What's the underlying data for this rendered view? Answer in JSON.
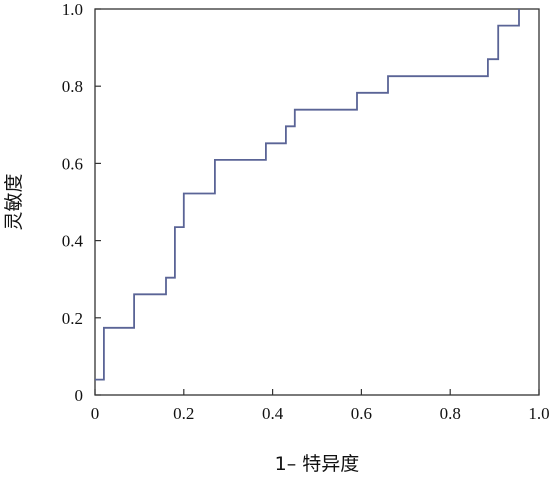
{
  "chart_data": {
    "type": "line",
    "title": "",
    "xlabel": "1– 特异度",
    "ylabel": "灵敏度",
    "xlim": [
      0,
      1.0
    ],
    "ylim": [
      0,
      1.0
    ],
    "xticks": [
      "0",
      "0.2",
      "0.4",
      "0.6",
      "0.8",
      "1.0"
    ],
    "yticks": [
      "0",
      "0.2",
      "0.4",
      "0.6",
      "0.8",
      "1.0"
    ],
    "grid": false,
    "legend": "none",
    "series": [
      {
        "color": "#5a6496",
        "style": "step",
        "points": [
          [
            0.0,
            0.04
          ],
          [
            0.02,
            0.04
          ],
          [
            0.02,
            0.174
          ],
          [
            0.088,
            0.174
          ],
          [
            0.088,
            0.261
          ],
          [
            0.16,
            0.261
          ],
          [
            0.16,
            0.304
          ],
          [
            0.18,
            0.304
          ],
          [
            0.18,
            0.435
          ],
          [
            0.2,
            0.435
          ],
          [
            0.2,
            0.522
          ],
          [
            0.27,
            0.522
          ],
          [
            0.27,
            0.609
          ],
          [
            0.385,
            0.609
          ],
          [
            0.385,
            0.652
          ],
          [
            0.43,
            0.652
          ],
          [
            0.43,
            0.696
          ],
          [
            0.45,
            0.696
          ],
          [
            0.45,
            0.739
          ],
          [
            0.59,
            0.739
          ],
          [
            0.59,
            0.783
          ],
          [
            0.66,
            0.783
          ],
          [
            0.66,
            0.826
          ],
          [
            0.885,
            0.826
          ],
          [
            0.885,
            0.87
          ],
          [
            0.908,
            0.87
          ],
          [
            0.908,
            0.957
          ],
          [
            0.955,
            0.957
          ],
          [
            0.955,
            1.0
          ]
        ]
      }
    ]
  }
}
